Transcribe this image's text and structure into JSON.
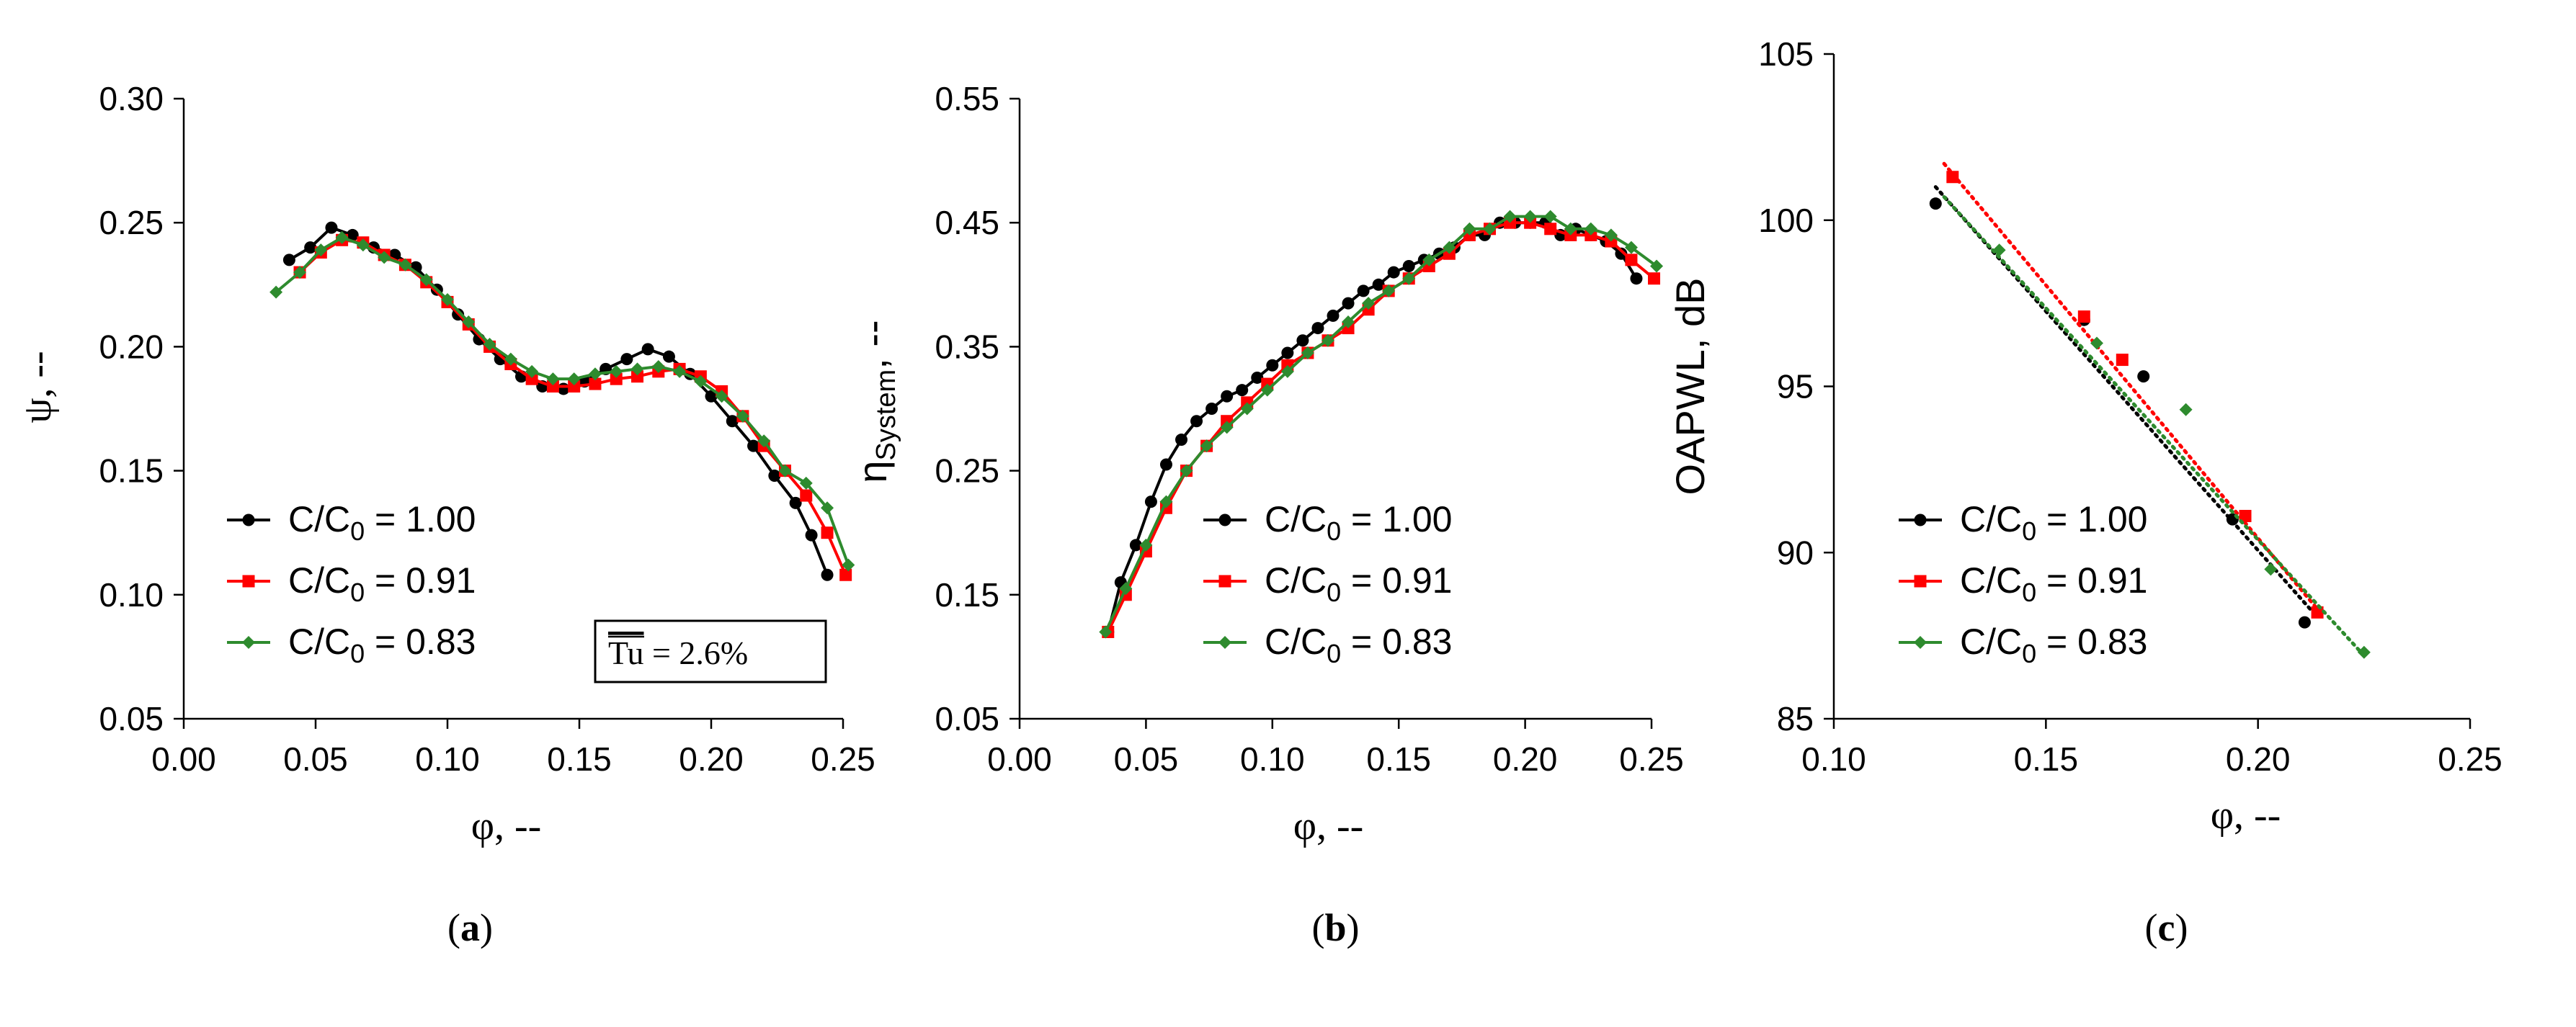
{
  "chart_data": [
    {
      "id": "a",
      "type": "line",
      "panel_label": "a",
      "title": "",
      "xlabel": "φ, --",
      "ylabel": "ψ, --",
      "xlim": [
        0.0,
        0.25
      ],
      "ylim": [
        0.05,
        0.3
      ],
      "xticks": [
        "0.00",
        "0.05",
        "0.10",
        "0.15",
        "0.20",
        "0.25"
      ],
      "yticks": [
        "0.05",
        "0.10",
        "0.15",
        "0.20",
        "0.25",
        "0.30"
      ],
      "legend_position": "lower-left",
      "annotation": {
        "overbar": "Tu",
        "text": " = 2.6%"
      },
      "series": [
        {
          "name": "C/C0 = 1.00",
          "name_parts": [
            "C/C",
            "0",
            " = 1.00"
          ],
          "color": "#000000",
          "marker": "circle",
          "x": [
            0.04,
            0.048,
            0.056,
            0.064,
            0.072,
            0.08,
            0.088,
            0.096,
            0.104,
            0.112,
            0.12,
            0.128,
            0.136,
            0.144,
            0.152,
            0.16,
            0.168,
            0.176,
            0.184,
            0.192,
            0.2,
            0.208,
            0.216,
            0.224,
            0.232,
            0.238,
            0.244
          ],
          "y": [
            0.235,
            0.24,
            0.248,
            0.245,
            0.24,
            0.237,
            0.232,
            0.223,
            0.213,
            0.203,
            0.195,
            0.188,
            0.184,
            0.183,
            0.186,
            0.191,
            0.195,
            0.199,
            0.196,
            0.189,
            0.18,
            0.17,
            0.16,
            0.148,
            0.137,
            0.124,
            0.108
          ]
        },
        {
          "name": "C/C0 = 0.91",
          "name_parts": [
            "C/C",
            "0",
            " = 0.91"
          ],
          "color": "#ff0000",
          "marker": "square",
          "x": [
            0.044,
            0.052,
            0.06,
            0.068,
            0.076,
            0.084,
            0.092,
            0.1,
            0.108,
            0.116,
            0.124,
            0.132,
            0.14,
            0.148,
            0.156,
            0.164,
            0.172,
            0.18,
            0.188,
            0.196,
            0.204,
            0.212,
            0.22,
            0.228,
            0.236,
            0.244,
            0.251
          ],
          "y": [
            0.23,
            0.238,
            0.243,
            0.242,
            0.237,
            0.233,
            0.226,
            0.218,
            0.209,
            0.2,
            0.193,
            0.187,
            0.184,
            0.184,
            0.185,
            0.187,
            0.188,
            0.19,
            0.191,
            0.188,
            0.182,
            0.172,
            0.16,
            0.15,
            0.14,
            0.125,
            0.108
          ]
        },
        {
          "name": "C/C0 = 0.83",
          "name_parts": [
            "C/C",
            "0",
            " = 0.83"
          ],
          "color": "#2e8b2e",
          "marker": "diamond",
          "x": [
            0.035,
            0.044,
            0.052,
            0.06,
            0.068,
            0.076,
            0.084,
            0.092,
            0.1,
            0.108,
            0.116,
            0.124,
            0.132,
            0.14,
            0.148,
            0.156,
            0.164,
            0.172,
            0.18,
            0.188,
            0.196,
            0.204,
            0.212,
            0.22,
            0.228,
            0.236,
            0.244,
            0.252
          ],
          "y": [
            0.222,
            0.23,
            0.239,
            0.244,
            0.241,
            0.236,
            0.233,
            0.227,
            0.219,
            0.21,
            0.201,
            0.195,
            0.19,
            0.187,
            0.187,
            0.189,
            0.19,
            0.191,
            0.192,
            0.19,
            0.186,
            0.18,
            0.172,
            0.162,
            0.15,
            0.145,
            0.135,
            0.112
          ]
        }
      ]
    },
    {
      "id": "b",
      "type": "line",
      "panel_label": "b",
      "title": "",
      "xlabel": "φ, --",
      "ylabel_main": "η",
      "ylabel_sub": "System",
      "ylabel_tail": ", --",
      "xlim": [
        0.0,
        0.25
      ],
      "ylim": [
        0.05,
        0.55
      ],
      "xticks": [
        "0.00",
        "0.05",
        "0.10",
        "0.15",
        "0.20",
        "0.25"
      ],
      "yticks": [
        "0.05",
        "0.15",
        "0.25",
        "0.35",
        "0.45",
        "0.55"
      ],
      "legend_position": "lower-right",
      "series": [
        {
          "name": "C/C0 = 1.00",
          "name_parts": [
            "C/C",
            "0",
            " = 1.00"
          ],
          "color": "#000000",
          "marker": "circle",
          "x": [
            0.035,
            0.04,
            0.046,
            0.052,
            0.058,
            0.064,
            0.07,
            0.076,
            0.082,
            0.088,
            0.094,
            0.1,
            0.106,
            0.112,
            0.118,
            0.124,
            0.13,
            0.136,
            0.142,
            0.148,
            0.154,
            0.16,
            0.166,
            0.172,
            0.178,
            0.184,
            0.19,
            0.196,
            0.202,
            0.208,
            0.214,
            0.22,
            0.226,
            0.232,
            0.238,
            0.244
          ],
          "y": [
            0.12,
            0.16,
            0.19,
            0.225,
            0.255,
            0.275,
            0.29,
            0.3,
            0.31,
            0.315,
            0.325,
            0.335,
            0.345,
            0.355,
            0.365,
            0.375,
            0.385,
            0.395,
            0.4,
            0.41,
            0.415,
            0.42,
            0.425,
            0.43,
            0.44,
            0.44,
            0.45,
            0.45,
            0.45,
            0.45,
            0.44,
            0.445,
            0.44,
            0.435,
            0.425,
            0.405
          ]
        },
        {
          "name": "C/C0 = 0.91",
          "name_parts": [
            "C/C",
            "0",
            " = 0.91"
          ],
          "color": "#ff0000",
          "marker": "square",
          "x": [
            0.035,
            0.042,
            0.05,
            0.058,
            0.066,
            0.074,
            0.082,
            0.09,
            0.098,
            0.106,
            0.114,
            0.122,
            0.13,
            0.138,
            0.146,
            0.154,
            0.162,
            0.17,
            0.178,
            0.186,
            0.194,
            0.202,
            0.21,
            0.218,
            0.226,
            0.234,
            0.242,
            0.251
          ],
          "y": [
            0.12,
            0.15,
            0.185,
            0.22,
            0.25,
            0.27,
            0.29,
            0.305,
            0.32,
            0.335,
            0.345,
            0.355,
            0.365,
            0.38,
            0.395,
            0.405,
            0.415,
            0.425,
            0.44,
            0.445,
            0.45,
            0.45,
            0.445,
            0.44,
            0.44,
            0.435,
            0.42,
            0.405
          ]
        },
        {
          "name": "C/C0 = 0.83",
          "name_parts": [
            "C/C",
            "0",
            " = 0.83"
          ],
          "color": "#2e8b2e",
          "marker": "diamond",
          "x": [
            0.034,
            0.042,
            0.05,
            0.058,
            0.066,
            0.074,
            0.082,
            0.09,
            0.098,
            0.106,
            0.114,
            0.122,
            0.13,
            0.138,
            0.146,
            0.154,
            0.162,
            0.17,
            0.178,
            0.186,
            0.194,
            0.202,
            0.21,
            0.218,
            0.226,
            0.234,
            0.242,
            0.252
          ],
          "y": [
            0.12,
            0.155,
            0.19,
            0.225,
            0.25,
            0.27,
            0.285,
            0.3,
            0.315,
            0.33,
            0.345,
            0.355,
            0.37,
            0.385,
            0.395,
            0.405,
            0.42,
            0.43,
            0.445,
            0.445,
            0.455,
            0.455,
            0.455,
            0.445,
            0.445,
            0.44,
            0.43,
            0.415
          ]
        }
      ]
    },
    {
      "id": "c",
      "type": "scatter",
      "panel_label": "c",
      "title": "",
      "xlabel": "φ, --",
      "ylabel": "OAPWL, dB",
      "xlim": [
        0.1,
        0.25
      ],
      "ylim": [
        85,
        105
      ],
      "xticks": [
        "0.10",
        "0.15",
        "0.20",
        "0.25"
      ],
      "yticks": [
        "85",
        "90",
        "95",
        "100",
        "105"
      ],
      "legend_position": "lower-left",
      "trendline": "linear (dotted)",
      "series": [
        {
          "name": "C/C0 = 1.00",
          "name_parts": [
            "C/C",
            "0",
            " = 1.00"
          ],
          "color": "#000000",
          "marker": "circle",
          "x": [
            0.124,
            0.159,
            0.173,
            0.194,
            0.211
          ],
          "y": [
            100.5,
            97.0,
            95.3,
            91.0,
            87.9
          ],
          "trend": {
            "x": [
              0.124,
              0.213
            ],
            "y": [
              101.0,
              88.2
            ]
          }
        },
        {
          "name": "C/C0 = 0.91",
          "name_parts": [
            "C/C",
            "0",
            " = 0.91"
          ],
          "color": "#ff0000",
          "marker": "square",
          "x": [
            0.128,
            0.159,
            0.168,
            0.197,
            0.214
          ],
          "y": [
            101.3,
            97.1,
            95.8,
            91.1,
            88.2
          ],
          "trend": {
            "x": [
              0.126,
              0.214
            ],
            "y": [
              101.7,
              88.3
            ]
          }
        },
        {
          "name": "C/C0 = 0.83",
          "name_parts": [
            "C/C",
            "0",
            " = 0.83"
          ],
          "color": "#2e8b2e",
          "marker": "diamond",
          "x": [
            0.139,
            0.162,
            0.183,
            0.203,
            0.225
          ],
          "y": [
            99.1,
            96.3,
            94.3,
            89.5,
            87.0
          ],
          "trend": {
            "x": [
              0.126,
              0.225
            ],
            "y": [
              100.7,
              86.9
            ]
          }
        }
      ]
    }
  ]
}
